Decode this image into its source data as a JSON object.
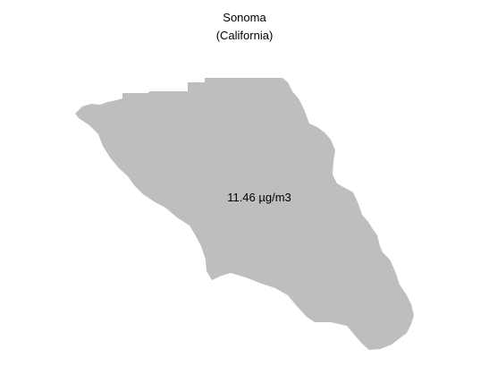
{
  "map": {
    "title_line1": "Sonoma",
    "title_line2": "(California)",
    "value_label": "11.46 µg/m3",
    "region_fill": "#bebebe",
    "background": "#ffffff"
  }
}
